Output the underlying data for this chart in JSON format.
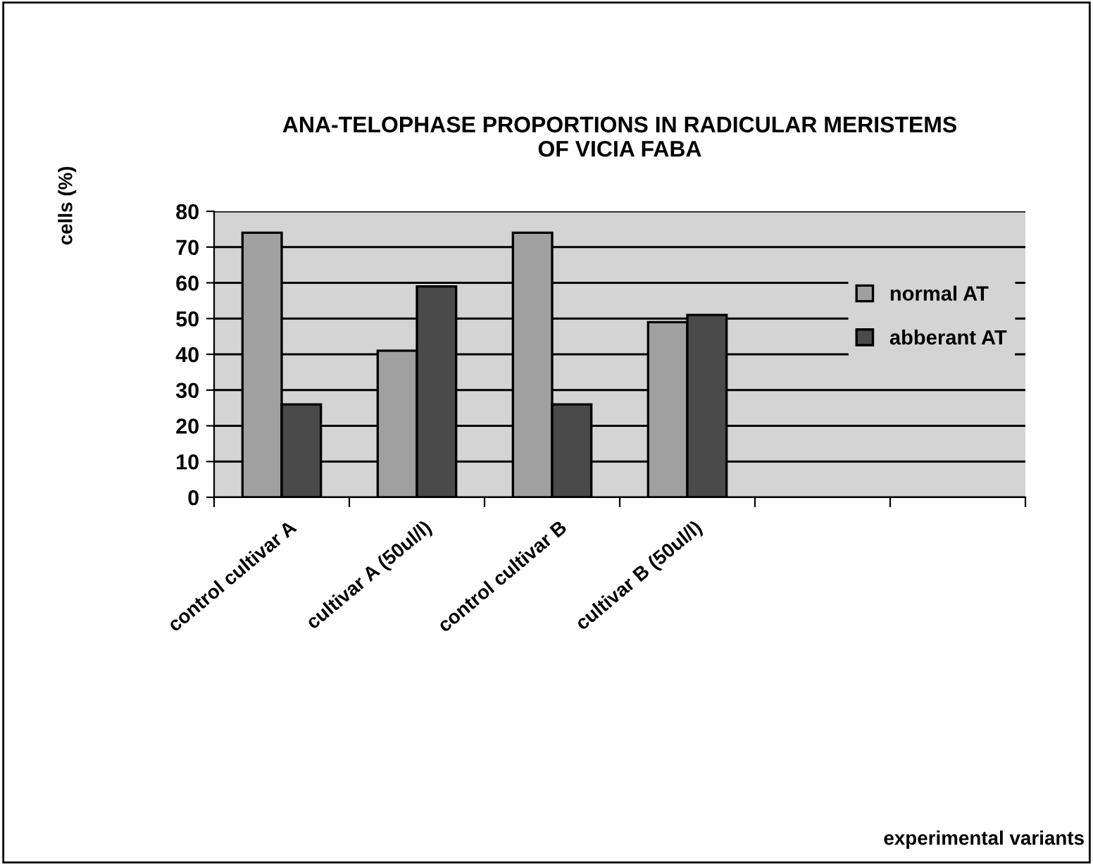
{
  "chart_data": {
    "type": "bar",
    "title": "ANA-TELOPHASE PROPORTIONS IN RADICULAR MERISTEMS\nOF VICIA FABA",
    "annotations": [
      "experimental variants"
    ],
    "ylabel": "cells (%)",
    "categories": [
      "control cultivar A",
      "cultivar A (50ul/l)",
      "control cultivar B",
      "cultivar B (50ul/l)",
      null,
      null
    ],
    "series": [
      {
        "name": "normal AT",
        "color": "#a0a0a0",
        "values": [
          74,
          41,
          74,
          49,
          null,
          null
        ]
      },
      {
        "name": "abberant AT",
        "color": "#4a4a4a",
        "values": [
          26,
          59,
          26,
          51,
          null,
          null
        ]
      }
    ],
    "ylim": [
      0,
      80
    ],
    "yticks": [
      0,
      10,
      20,
      30,
      40,
      50,
      60,
      70,
      80
    ],
    "grid": "y",
    "legend": "right"
  }
}
